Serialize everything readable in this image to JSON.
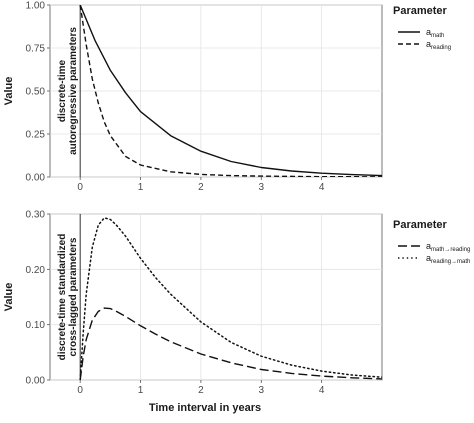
{
  "xlabel": "Time interval in years",
  "chart_data": [
    {
      "type": "line",
      "ylabel": "Value",
      "annotation": [
        "discrete-time",
        "autoregressive parameters"
      ],
      "xlim": [
        -0.5,
        5.0
      ],
      "ylim": [
        0.0,
        1.0
      ],
      "x_ticks": [
        0,
        1,
        2,
        3,
        4
      ],
      "y_ticks": [
        "0.00",
        "0.25",
        "0.50",
        "0.75",
        "1.00"
      ],
      "grid": true,
      "legend_title": "Parameter",
      "legend_position": "right",
      "series": [
        {
          "base": "a",
          "sub": "math",
          "style": "solid",
          "x": [
            0,
            0.25,
            0.5,
            0.75,
            1,
            1.5,
            2,
            2.5,
            3,
            3.5,
            4,
            4.5,
            5
          ],
          "y": [
            1.0,
            0.79,
            0.62,
            0.49,
            0.38,
            0.24,
            0.15,
            0.09,
            0.055,
            0.035,
            0.022,
            0.014,
            0.008
          ]
        },
        {
          "base": "a",
          "sub": "reading",
          "style": "dashed",
          "x": [
            0,
            0.1,
            0.2,
            0.3,
            0.4,
            0.5,
            0.75,
            1,
            1.5,
            2,
            2.5,
            3,
            4,
            5
          ],
          "y": [
            1.0,
            0.77,
            0.57,
            0.43,
            0.32,
            0.24,
            0.12,
            0.07,
            0.03,
            0.015,
            0.008,
            0.005,
            0.002,
            0.001
          ]
        }
      ]
    },
    {
      "type": "line",
      "ylabel": "Value",
      "annotation": [
        "discrete-time standardized",
        "cross-lagged parameters"
      ],
      "xlim": [
        -0.5,
        5.0
      ],
      "ylim": [
        0.0,
        0.3
      ],
      "x_ticks": [
        0,
        1,
        2,
        3,
        4
      ],
      "y_ticks": [
        "0.00",
        "0.10",
        "0.20",
        "0.30"
      ],
      "grid": true,
      "legend_title": "Parameter",
      "legend_position": "right",
      "series": [
        {
          "base": "a",
          "sub": "math→reading",
          "style": "longdash",
          "x": [
            0,
            0.05,
            0.1,
            0.2,
            0.3,
            0.4,
            0.5,
            0.6,
            0.75,
            1,
            1.25,
            1.5,
            2,
            2.5,
            3,
            3.5,
            4,
            4.5,
            5
          ],
          "y": [
            0.0,
            0.043,
            0.073,
            0.108,
            0.124,
            0.13,
            0.129,
            0.124,
            0.115,
            0.098,
            0.083,
            0.069,
            0.047,
            0.031,
            0.019,
            0.012,
            0.007,
            0.004,
            0.002
          ]
        },
        {
          "base": "a",
          "sub": "reading→math",
          "style": "dotted",
          "x": [
            0,
            0.05,
            0.1,
            0.2,
            0.3,
            0.4,
            0.5,
            0.6,
            0.75,
            1,
            1.25,
            1.5,
            2,
            2.5,
            3,
            3.5,
            4,
            4.5,
            5
          ],
          "y": [
            0.0,
            0.085,
            0.155,
            0.24,
            0.28,
            0.293,
            0.29,
            0.28,
            0.26,
            0.22,
            0.185,
            0.155,
            0.105,
            0.068,
            0.043,
            0.027,
            0.016,
            0.009,
            0.005
          ]
        }
      ]
    }
  ]
}
